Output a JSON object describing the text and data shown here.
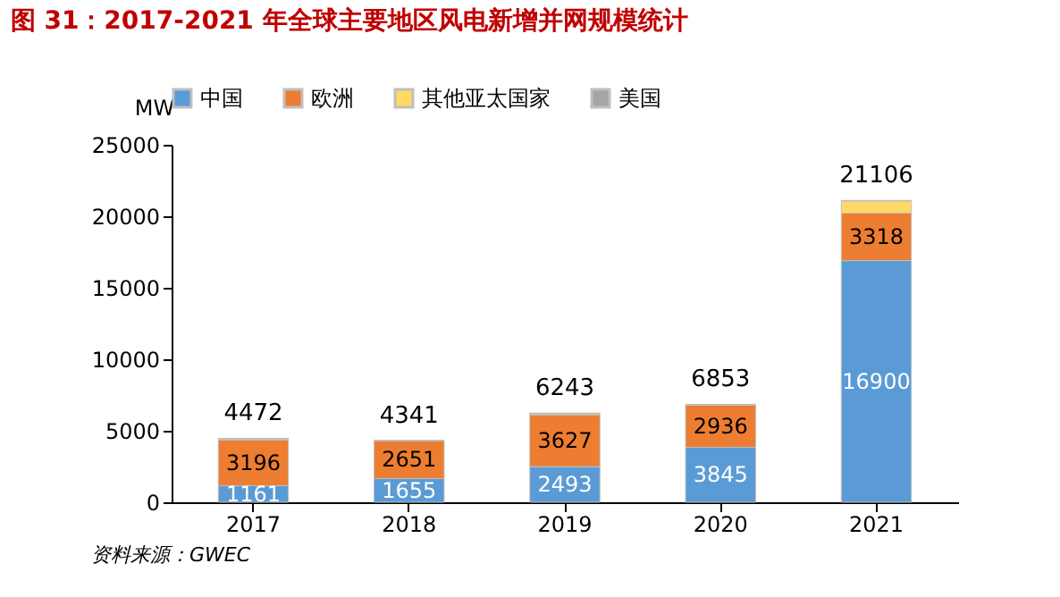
{
  "chart_data": {
    "type": "bar",
    "title": "图 31：2017-2021 年全球主要地区风电新增并网规模统计",
    "ylabel": "MW",
    "categories": [
      "2017",
      "2018",
      "2019",
      "2020",
      "2021"
    ],
    "stacked": true,
    "series": [
      {
        "name": "中国",
        "color": "#5b9bd5",
        "values": [
          1161,
          1655,
          2493,
          3845,
          16900
        ],
        "value_labels": [
          "1161",
          "1655",
          "2493",
          "3845",
          "16900"
        ]
      },
      {
        "name": "欧洲",
        "color": "#ed7d31",
        "values": [
          3196,
          2651,
          3627,
          2936,
          3318
        ],
        "value_labels": [
          "3196",
          "2651",
          "3627",
          "2936",
          "3318"
        ]
      },
      {
        "name": "其他亚太国家",
        "color": "#ffd966",
        "values": [
          60,
          20,
          80,
          30,
          850
        ]
      },
      {
        "name": "美国",
        "color": "#a5a5a5",
        "values": [
          55,
          15,
          43,
          42,
          38
        ]
      }
    ],
    "totals": [
      "4472",
      "4341",
      "6243",
      "6853",
      "21106"
    ],
    "ylim": [
      0,
      25000
    ],
    "yticks": [
      0,
      5000,
      10000,
      15000,
      20000,
      25000
    ],
    "grid": false,
    "legend": "top",
    "annotations": [
      "资料来源：GWEC"
    ]
  }
}
